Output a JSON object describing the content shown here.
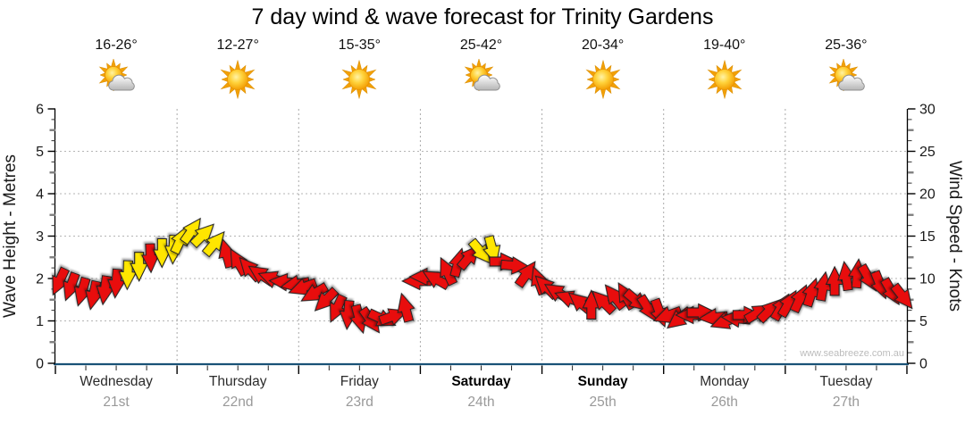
{
  "title": "7 day wind & wave forecast for Trinity Gardens",
  "watermark": "www.seabreeze.com.au",
  "days": [
    {
      "name": "Wednesday",
      "date": "21st",
      "temp": "16-26°",
      "icon": "sun-cloud",
      "weekend": false
    },
    {
      "name": "Thursday",
      "date": "22nd",
      "temp": "12-27°",
      "icon": "sunny",
      "weekend": false
    },
    {
      "name": "Friday",
      "date": "23rd",
      "temp": "15-35°",
      "icon": "sunny",
      "weekend": false
    },
    {
      "name": "Saturday",
      "date": "24th",
      "temp": "25-42°",
      "icon": "sun-cloud",
      "weekend": true
    },
    {
      "name": "Sunday",
      "date": "25th",
      "temp": "20-34°",
      "icon": "sunny",
      "weekend": true
    },
    {
      "name": "Monday",
      "date": "26th",
      "temp": "19-40°",
      "icon": "sunny",
      "weekend": false
    },
    {
      "name": "Tuesday",
      "date": "27th",
      "temp": "25-36°",
      "icon": "sun-cloud",
      "weekend": false
    }
  ],
  "chart_data": {
    "type": "wind-arrows-timeline",
    "title": "7 day wind & wave forecast for Trinity Gardens",
    "x_days": [
      "Wednesday 21st",
      "Thursday 22nd",
      "Friday 23rd",
      "Saturday 24th",
      "Sunday 25th",
      "Monday 26th",
      "Tuesday 27th"
    ],
    "y_left": {
      "label": "Wave Height - Metres",
      "min": 0,
      "max": 6,
      "ticks": [
        0,
        1,
        2,
        3,
        4,
        5,
        6
      ]
    },
    "y_right": {
      "label": "Wind Speed - Knots",
      "min": 0,
      "max": 30,
      "ticks": [
        0,
        5,
        10,
        15,
        20,
        25,
        30
      ]
    },
    "grid": true,
    "arrow_colors": {
      "r": "#e81010",
      "y": "#ffe600"
    },
    "arrow_format": [
      "time_in_days_from_start",
      "wind_speed_knots",
      "arrow_direction_deg_clockwise_from_up",
      "color r=light y=moderate"
    ],
    "arrows": [
      [
        0.03,
        9.6,
        205,
        "r"
      ],
      [
        0.124,
        9.0,
        200,
        "r"
      ],
      [
        0.218,
        8.4,
        196,
        "r"
      ],
      [
        0.312,
        8.0,
        192,
        "r"
      ],
      [
        0.406,
        8.6,
        188,
        "r"
      ],
      [
        0.5,
        9.4,
        185,
        "r"
      ],
      [
        0.594,
        10.4,
        182,
        "y"
      ],
      [
        0.688,
        11.4,
        180,
        "y"
      ],
      [
        0.782,
        12.4,
        178,
        "r"
      ],
      [
        0.876,
        13.0,
        180,
        "y"
      ],
      [
        0.97,
        13.4,
        183,
        "y"
      ],
      [
        1.03,
        14.6,
        25,
        "y"
      ],
      [
        1.124,
        15.7,
        35,
        "y"
      ],
      [
        1.218,
        15.2,
        45,
        "y"
      ],
      [
        1.312,
        14.2,
        40,
        "y"
      ],
      [
        1.406,
        13.0,
        345,
        "r"
      ],
      [
        1.5,
        12.0,
        330,
        "r"
      ],
      [
        1.594,
        11.2,
        318,
        "r"
      ],
      [
        1.688,
        10.5,
        304,
        "r"
      ],
      [
        1.782,
        10.0,
        290,
        "r"
      ],
      [
        1.876,
        9.6,
        275,
        "r"
      ],
      [
        1.97,
        9.3,
        260,
        "r"
      ],
      [
        2.03,
        8.9,
        250,
        "r"
      ],
      [
        2.124,
        8.2,
        240,
        "r"
      ],
      [
        2.218,
        7.4,
        225,
        "r"
      ],
      [
        2.312,
        6.4,
        205,
        "r"
      ],
      [
        2.406,
        5.7,
        185,
        "r"
      ],
      [
        2.5,
        5.2,
        165,
        "r"
      ],
      [
        2.594,
        5.0,
        145,
        "r"
      ],
      [
        2.688,
        5.2,
        115,
        "r"
      ],
      [
        2.782,
        5.6,
        70,
        "r"
      ],
      [
        2.876,
        6.6,
        345,
        "r"
      ],
      [
        2.97,
        9.7,
        270,
        "r"
      ],
      [
        3.03,
        10.2,
        270,
        "r"
      ],
      [
        3.124,
        10.0,
        300,
        "r"
      ],
      [
        3.218,
        10.9,
        335,
        "r"
      ],
      [
        3.312,
        11.9,
        15,
        "r"
      ],
      [
        3.406,
        12.6,
        40,
        "r"
      ],
      [
        3.5,
        13.1,
        140,
        "y"
      ],
      [
        3.594,
        13.3,
        165,
        "y"
      ],
      [
        3.688,
        12.0,
        90,
        "r"
      ],
      [
        3.782,
        11.5,
        95,
        "r"
      ],
      [
        3.876,
        10.6,
        35,
        "r"
      ],
      [
        3.97,
        9.8,
        340,
        "r"
      ],
      [
        4.03,
        9.1,
        315,
        "r"
      ],
      [
        4.124,
        8.4,
        302,
        "r"
      ],
      [
        4.218,
        7.7,
        290,
        "r"
      ],
      [
        4.312,
        7.2,
        310,
        "r"
      ],
      [
        4.406,
        6.9,
        0,
        "r"
      ],
      [
        4.5,
        7.3,
        315,
        "r"
      ],
      [
        4.594,
        7.9,
        322,
        "r"
      ],
      [
        4.688,
        8.0,
        330,
        "r"
      ],
      [
        4.782,
        7.3,
        130,
        "r"
      ],
      [
        4.876,
        6.4,
        148,
        "r"
      ],
      [
        4.97,
        5.9,
        160,
        "r"
      ],
      [
        5.03,
        5.6,
        250,
        "r"
      ],
      [
        5.124,
        5.2,
        232,
        "r"
      ],
      [
        5.218,
        5.7,
        270,
        "r"
      ],
      [
        5.312,
        6.0,
        90,
        "r"
      ],
      [
        5.406,
        5.4,
        265,
        "r"
      ],
      [
        5.5,
        4.9,
        250,
        "r"
      ],
      [
        5.594,
        5.3,
        275,
        "r"
      ],
      [
        5.688,
        5.7,
        90,
        "r"
      ],
      [
        5.782,
        6.0,
        60,
        "r"
      ],
      [
        5.876,
        6.3,
        45,
        "r"
      ],
      [
        5.97,
        6.7,
        30,
        "r"
      ],
      [
        6.03,
        7.1,
        30,
        "r"
      ],
      [
        6.124,
        7.7,
        25,
        "r"
      ],
      [
        6.218,
        8.4,
        18,
        "r"
      ],
      [
        6.312,
        9.1,
        10,
        "r"
      ],
      [
        6.406,
        9.7,
        0,
        "r"
      ],
      [
        6.5,
        10.3,
        352,
        "r"
      ],
      [
        6.594,
        10.6,
        5,
        "r"
      ],
      [
        6.688,
        10.0,
        150,
        "r"
      ],
      [
        6.782,
        9.2,
        158,
        "r"
      ],
      [
        6.876,
        8.4,
        150,
        "r"
      ],
      [
        6.97,
        7.8,
        142,
        "r"
      ]
    ]
  },
  "colors": {
    "x_axis": "#1a5276",
    "grid": "#aaaaaa",
    "date_text": "#999999",
    "watermark": "#bcbcbc",
    "arrow_red": "#e81010",
    "arrow_yellow": "#ffe600"
  }
}
